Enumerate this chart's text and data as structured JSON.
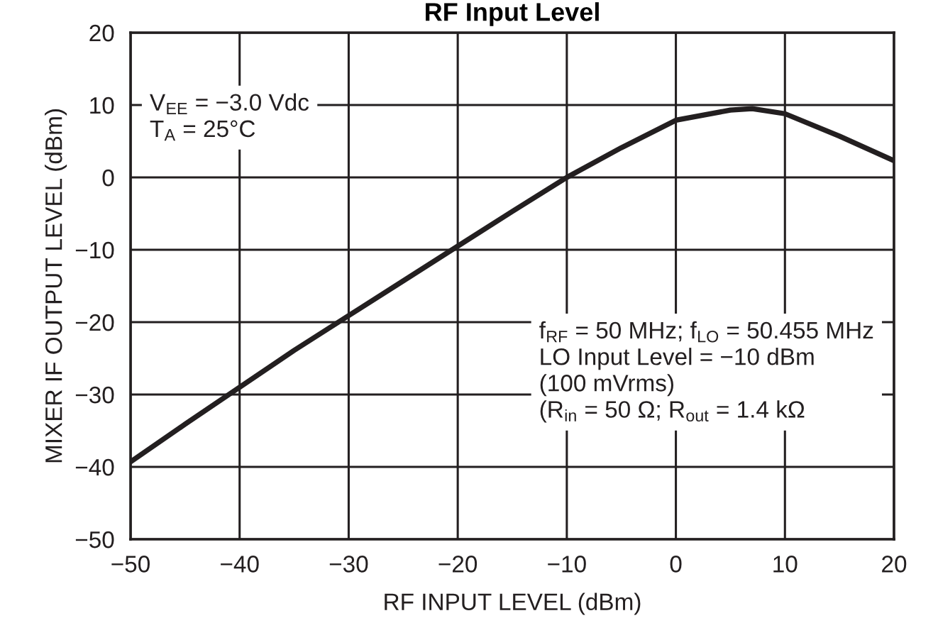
{
  "chart_data": {
    "type": "line",
    "title": "RF Input Level",
    "xlabel": "RF INPUT LEVEL (dBm)",
    "ylabel": "MIXER IF OUTPUT LEVEL (dBm)",
    "x": [
      -50,
      -45,
      -40,
      -35,
      -30,
      -25,
      -20,
      -15,
      -10,
      -5,
      0,
      5,
      7,
      10,
      15,
      20
    ],
    "series": [
      {
        "color": "#231f20",
        "values": [
          -39.3,
          -34.1,
          -29,
          -23.9,
          -19.1,
          -14.3,
          -9.5,
          -4.7,
          0,
          4.1,
          7.9,
          9.3,
          9.5,
          8.8,
          5.7,
          2.3
        ]
      }
    ],
    "xlim": [
      -50,
      20
    ],
    "xticks": [
      {
        "value": -50,
        "label": "−50"
      },
      {
        "value": -40,
        "label": "−40"
      },
      {
        "value": -30,
        "label": "−30"
      },
      {
        "value": -20,
        "label": "−20"
      },
      {
        "value": -10,
        "label": "−10"
      },
      0,
      10,
      20
    ],
    "ylim": [
      -50,
      20
    ],
    "yticks": [
      {
        "value": -50,
        "label": "−50"
      },
      {
        "value": -40,
        "label": "−40"
      },
      {
        "value": -30,
        "label": "−30"
      },
      {
        "value": -20,
        "label": "−20"
      },
      {
        "value": -10,
        "label": "−10"
      },
      0,
      10,
      20
    ],
    "grid": true,
    "marker": "none",
    "line_style": "solid",
    "annotations": [
      "V$_{EE}$ = −3.0 Vdc\nT$_{A}$ = 25°C",
      "f$_{RF}$ = 50 MHz; f$_{LO}$ = 50.455 MHz\nLO Input Level = −10 dBm\n(100 mVrms)\n(R$_{in}$ = 50 Ω; R$_{out}$ = 1.4 kΩ"
    ]
  }
}
